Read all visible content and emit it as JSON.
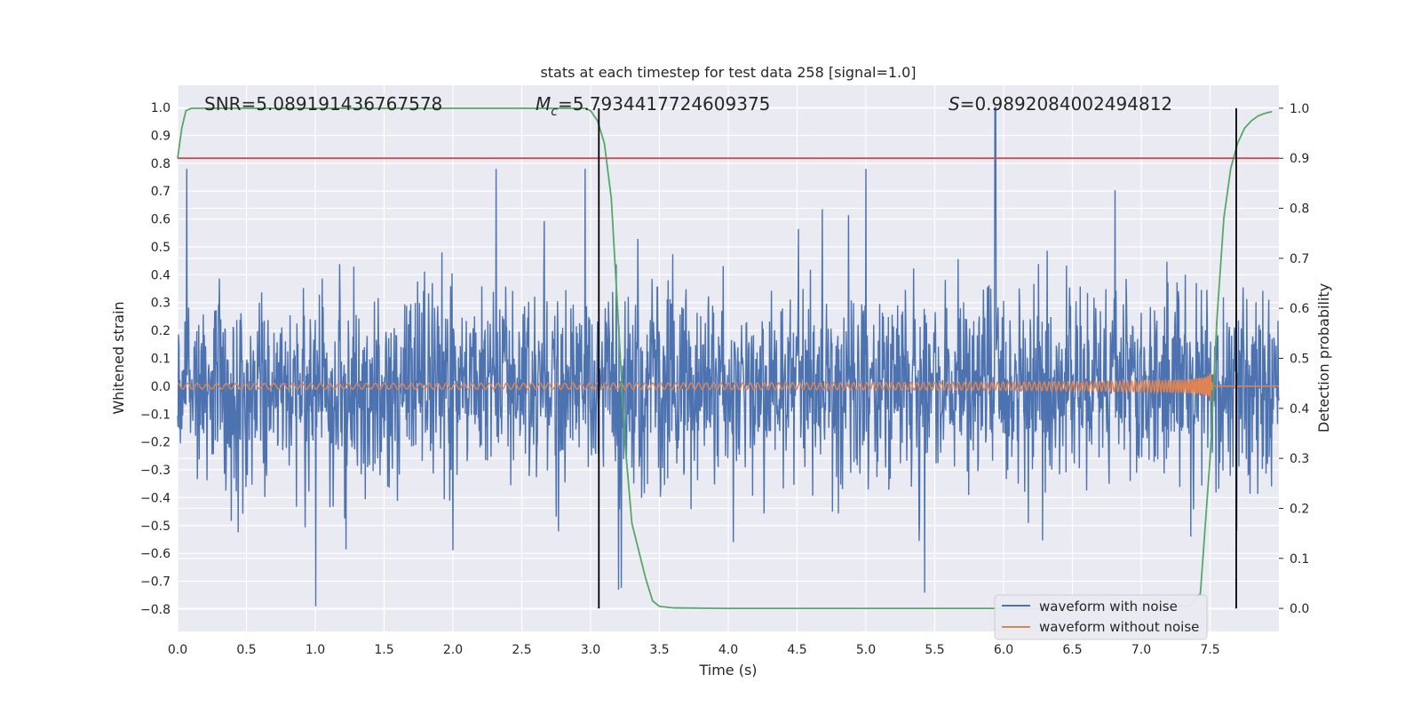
{
  "chart_data": {
    "type": "line",
    "title": "stats at each timestep for test data 258 [signal=1.0]",
    "xlabel": "Time (s)",
    "ylabel": "Whitened strain",
    "y2label": "Detection probability",
    "xlim": [
      0.0,
      8.0
    ],
    "ylim": [
      -0.88,
      1.08
    ],
    "y2lim": [
      -0.046,
      1.046
    ],
    "xticks": [
      "0.0",
      "0.5",
      "1.0",
      "1.5",
      "2.0",
      "2.5",
      "3.0",
      "3.5",
      "4.0",
      "4.5",
      "5.0",
      "5.5",
      "6.0",
      "6.5",
      "7.0",
      "7.5"
    ],
    "yticks": [
      "1.0",
      "0.9",
      "0.8",
      "0.7",
      "0.6",
      "0.5",
      "0.4",
      "0.3",
      "0.2",
      "0.1",
      "0.0",
      "−0.1",
      "−0.2",
      "−0.3",
      "−0.4",
      "−0.5",
      "−0.6",
      "−0.7",
      "−0.8"
    ],
    "y2ticks": [
      "1.0",
      "0.9",
      "0.8",
      "0.7",
      "0.6",
      "0.5",
      "0.4",
      "0.3",
      "0.2",
      "0.1",
      "0.0"
    ],
    "grid": true,
    "legend_position": "bottom-right",
    "annotations": {
      "snr": "SNR=5.089191436767578",
      "mc_symbol": "M",
      "mc_sub": "c",
      "mc_value": "=5.7934417724609375",
      "s_symbol": "S",
      "s_value": "=0.9892084002494812"
    },
    "threshold_prob": 0.9,
    "vertical_markers_s": [
      3.06,
      7.69
    ],
    "series": [
      {
        "name": "waveform with noise",
        "color": "#4c72b0",
        "axis": "left",
        "description_values": {
          "noise_band_min": -0.79,
          "noise_band_max": 1.0,
          "typical_abs_max": 0.36,
          "peak_time_s": 5.94,
          "peak_value": 1.0
        }
      },
      {
        "name": "waveform without noise",
        "color": "#dd8452",
        "axis": "left",
        "description_values": {
          "chirp_start_amp": 0.01,
          "merger_time_s": 7.5,
          "merger_amp": 0.1
        }
      },
      {
        "name": "",
        "color": "#55a868",
        "axis": "right",
        "x": [
          0.0,
          0.03,
          0.06,
          0.1,
          0.15,
          0.3,
          1.0,
          2.0,
          2.96,
          3.0,
          3.05,
          3.1,
          3.15,
          3.2,
          3.25,
          3.3,
          3.4,
          3.45,
          3.5,
          3.6,
          4.0,
          5.0,
          6.0,
          7.0,
          7.35,
          7.43,
          7.5,
          7.55,
          7.6,
          7.65,
          7.7,
          7.75,
          7.8,
          7.85,
          7.9,
          7.95
        ],
        "y": [
          0.9,
          0.96,
          0.995,
          1.0,
          1.0,
          1.0,
          1.0,
          1.0,
          1.0,
          0.995,
          0.975,
          0.93,
          0.82,
          0.58,
          0.33,
          0.17,
          0.06,
          0.015,
          0.004,
          0.001,
          0.0,
          0.0,
          0.0,
          0.0,
          0.005,
          0.03,
          0.3,
          0.58,
          0.78,
          0.88,
          0.93,
          0.96,
          0.975,
          0.985,
          0.99,
          0.993
        ]
      },
      {
        "name": "",
        "color": "#c44e52",
        "axis": "right",
        "x": [
          0.0,
          8.0
        ],
        "y": [
          0.9,
          0.9
        ]
      }
    ]
  }
}
